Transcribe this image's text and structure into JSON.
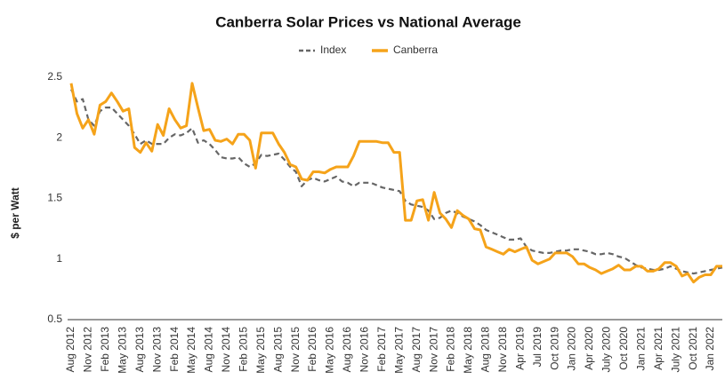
{
  "chart_data": {
    "type": "line",
    "title": "Canberra Solar Prices vs National Average",
    "y_label": "$ per Watt",
    "categories": [
      "Aug 2012",
      null,
      null,
      "Nov 2012",
      null,
      null,
      "Feb 2013",
      null,
      null,
      "May 2013",
      null,
      null,
      "Aug 2013",
      null,
      null,
      "Nov 2013",
      null,
      null,
      "Feb 2014",
      null,
      null,
      "May 2014",
      null,
      null,
      "Aug 2014",
      null,
      null,
      "Nov 2014",
      null,
      null,
      "Feb 2015",
      null,
      null,
      "May 2015",
      null,
      null,
      "Aug 2015",
      null,
      null,
      "Nov 2015",
      null,
      null,
      "Feb 2016",
      null,
      null,
      "May 2016",
      null,
      null,
      "Aug 2016",
      null,
      null,
      "Nov 2016",
      null,
      null,
      "Feb 2017",
      null,
      null,
      "May 2017",
      null,
      null,
      "Aug 2017",
      null,
      null,
      "Nov 2017",
      null,
      null,
      "Feb 2018",
      null,
      null,
      "May 2018",
      null,
      null,
      "Aug 2018",
      null,
      null,
      "Nov 2018",
      null,
      null,
      "Apr 2019",
      null,
      null,
      "Jul 2019",
      null,
      null,
      "Oct 2019",
      null,
      null,
      "Jan 2020",
      null,
      null,
      "Apr 2020",
      null,
      null,
      "July 2020",
      null,
      null,
      "Oct 2020",
      null,
      null,
      "Jan 2021",
      null,
      null,
      "Apr 2021",
      null,
      null,
      "July 2021",
      null,
      null,
      "Oct 2021",
      null,
      null,
      "Jan 2022",
      null,
      null
    ],
    "series": [
      {
        "name": "Index",
        "color": "#666666",
        "dashed": true,
        "values": [
          2.4,
          2.3,
          2.32,
          2.15,
          2.1,
          2.22,
          2.25,
          2.25,
          2.2,
          2.15,
          2.1,
          2.03,
          1.95,
          1.98,
          1.95,
          1.95,
          1.95,
          2.0,
          2.03,
          2.02,
          2.04,
          2.08,
          1.96,
          1.98,
          1.95,
          1.9,
          1.84,
          1.83,
          1.83,
          1.84,
          1.79,
          1.76,
          1.79,
          1.86,
          1.85,
          1.86,
          1.87,
          1.82,
          1.76,
          1.72,
          1.6,
          1.65,
          1.67,
          1.65,
          1.64,
          1.66,
          1.68,
          1.64,
          1.63,
          1.6,
          1.63,
          1.63,
          1.63,
          1.61,
          1.59,
          1.58,
          1.57,
          1.56,
          1.48,
          1.45,
          1.44,
          1.43,
          1.4,
          1.33,
          1.34,
          1.38,
          1.4,
          1.38,
          1.35,
          1.33,
          1.31,
          1.28,
          1.24,
          1.22,
          1.2,
          1.18,
          1.16,
          1.16,
          1.17,
          1.1,
          1.07,
          1.06,
          1.05,
          1.05,
          1.06,
          1.07,
          1.07,
          1.08,
          1.08,
          1.07,
          1.06,
          1.04,
          1.04,
          1.05,
          1.04,
          1.02,
          1.01,
          0.98,
          0.95,
          0.93,
          0.92,
          0.91,
          0.91,
          0.92,
          0.94,
          0.92,
          0.9,
          0.89,
          0.88,
          0.89,
          0.9,
          0.91,
          0.92,
          0.93
        ]
      },
      {
        "name": "Canberra",
        "color": "#f5a31a",
        "dashed": false,
        "values": [
          2.45,
          2.2,
          2.08,
          2.15,
          2.03,
          2.27,
          2.3,
          2.37,
          2.3,
          2.22,
          2.24,
          1.92,
          1.88,
          1.96,
          1.89,
          2.11,
          2.02,
          2.24,
          2.15,
          2.08,
          2.1,
          2.45,
          2.25,
          2.06,
          2.07,
          1.98,
          1.97,
          1.99,
          1.95,
          2.03,
          2.03,
          1.98,
          1.75,
          2.04,
          2.04,
          2.04,
          1.95,
          1.88,
          1.78,
          1.76,
          1.66,
          1.65,
          1.72,
          1.72,
          1.71,
          1.74,
          1.76,
          1.76,
          1.76,
          1.85,
          1.97,
          1.97,
          1.97,
          1.97,
          1.96,
          1.96,
          1.88,
          1.88,
          1.32,
          1.32,
          1.48,
          1.49,
          1.32,
          1.55,
          1.38,
          1.33,
          1.26,
          1.4,
          1.36,
          1.33,
          1.25,
          1.24,
          1.1,
          1.08,
          1.06,
          1.04,
          1.08,
          1.06,
          1.08,
          1.1,
          0.99,
          0.96,
          0.98,
          1.0,
          1.05,
          1.05,
          1.05,
          1.02,
          0.96,
          0.96,
          0.93,
          0.91,
          0.88,
          0.9,
          0.92,
          0.95,
          0.91,
          0.91,
          0.94,
          0.94,
          0.9,
          0.9,
          0.92,
          0.97,
          0.97,
          0.94,
          0.86,
          0.88,
          0.81,
          0.85,
          0.87,
          0.87,
          0.94,
          0.94
        ]
      }
    ],
    "ylim": [
      0.5,
      2.5
    ],
    "yticks": [
      0.5,
      1,
      1.5,
      2,
      2.5
    ],
    "grid": false,
    "legend": "top"
  }
}
